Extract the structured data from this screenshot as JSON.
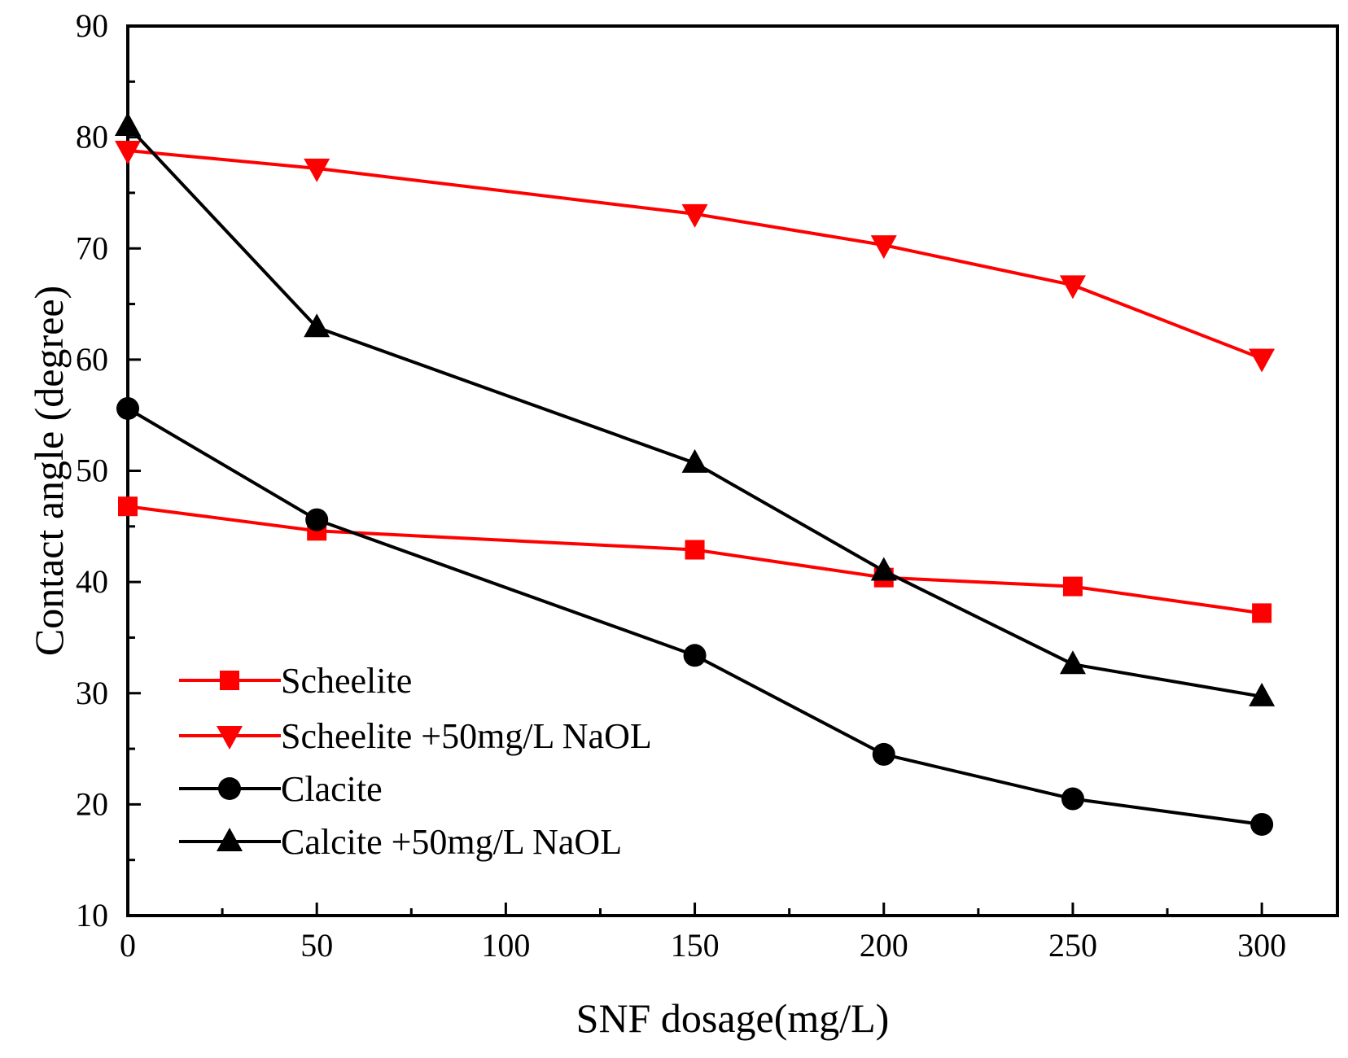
{
  "chart_data": {
    "type": "line",
    "title": "",
    "xlabel": "SNF dosage(mg/L)",
    "ylabel": "Contact angle (degree)",
    "xlim": [
      0,
      320
    ],
    "ylim": [
      10,
      90
    ],
    "x_ticks": [
      0,
      50,
      100,
      150,
      200,
      250,
      300
    ],
    "x_tick_labels": [
      "0",
      "50",
      "100",
      "150",
      "200",
      "250",
      "300"
    ],
    "y_ticks": [
      10,
      20,
      30,
      40,
      50,
      60,
      70,
      80,
      90
    ],
    "y_tick_labels": [
      "10",
      "20",
      "30",
      "40",
      "50",
      "60",
      "70",
      "80",
      "90"
    ],
    "grid": false,
    "legend_position": "bottom-left",
    "x": [
      0,
      50,
      150,
      200,
      250,
      300
    ],
    "series": [
      {
        "name": "Scheelite",
        "marker": "square",
        "color": "#ff0000",
        "values": [
          46.8,
          44.6,
          42.9,
          40.4,
          39.6,
          37.2
        ]
      },
      {
        "name": "Scheelite +50mg/L NaOL",
        "marker": "triangle-down",
        "color": "#ff0000",
        "values": [
          78.8,
          77.2,
          73.1,
          70.3,
          66.7,
          60.1
        ]
      },
      {
        "name": "Clacite",
        "marker": "circle",
        "color": "#000000",
        "values": [
          55.6,
          45.6,
          33.4,
          24.5,
          20.5,
          18.2
        ]
      },
      {
        "name": "Calcite +50mg/L NaOL",
        "marker": "triangle-up",
        "color": "#000000",
        "values": [
          81.0,
          62.9,
          50.7,
          41.0,
          32.6,
          29.7
        ]
      }
    ]
  }
}
